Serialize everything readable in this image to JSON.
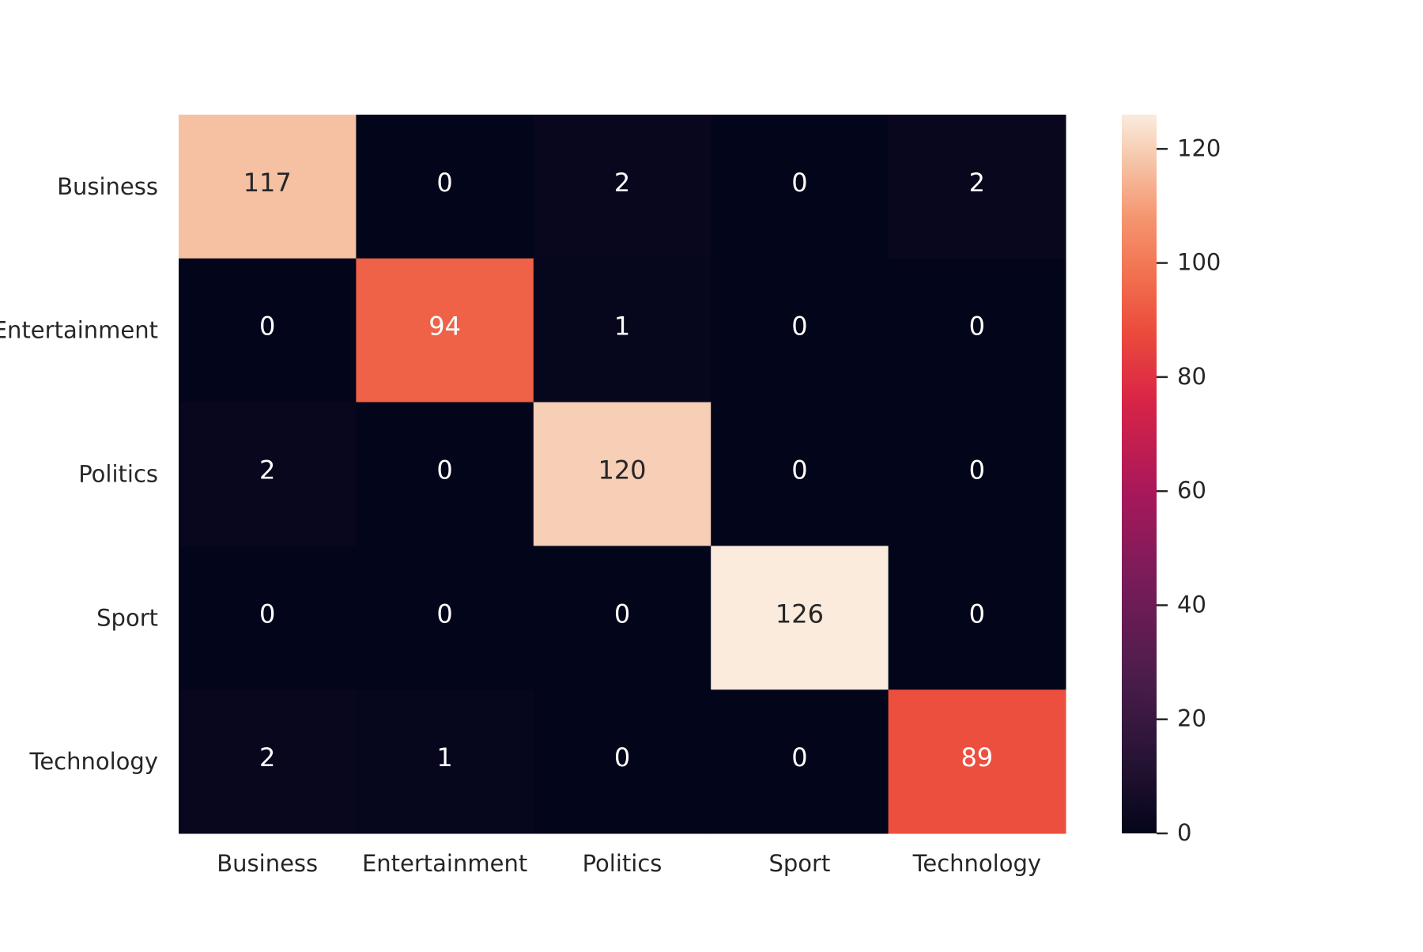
{
  "chart_data": {
    "type": "heatmap",
    "title": "",
    "xlabel": "",
    "ylabel": "",
    "x_categories": [
      "Business",
      "Entertainment",
      "Politics",
      "Sport",
      "Technology"
    ],
    "y_categories": [
      "Business",
      "Entertainment",
      "Politics",
      "Sport",
      "Technology"
    ],
    "values": [
      [
        117,
        0,
        2,
        0,
        2
      ],
      [
        0,
        94,
        1,
        0,
        0
      ],
      [
        2,
        0,
        120,
        0,
        0
      ],
      [
        0,
        0,
        0,
        126,
        0
      ],
      [
        2,
        1,
        0,
        0,
        89
      ]
    ],
    "colormap": "rocket",
    "colorbar": {
      "range": [
        0,
        126
      ],
      "ticks": [
        0,
        20,
        40,
        60,
        80,
        100,
        120
      ],
      "tick_labels": [
        "0",
        "20",
        "40",
        "60",
        "80",
        "100",
        "120"
      ]
    },
    "annotation_colors": {
      "on_dark": "#ffffff",
      "on_light": "#262626"
    },
    "tick_label_color": "#262626"
  }
}
